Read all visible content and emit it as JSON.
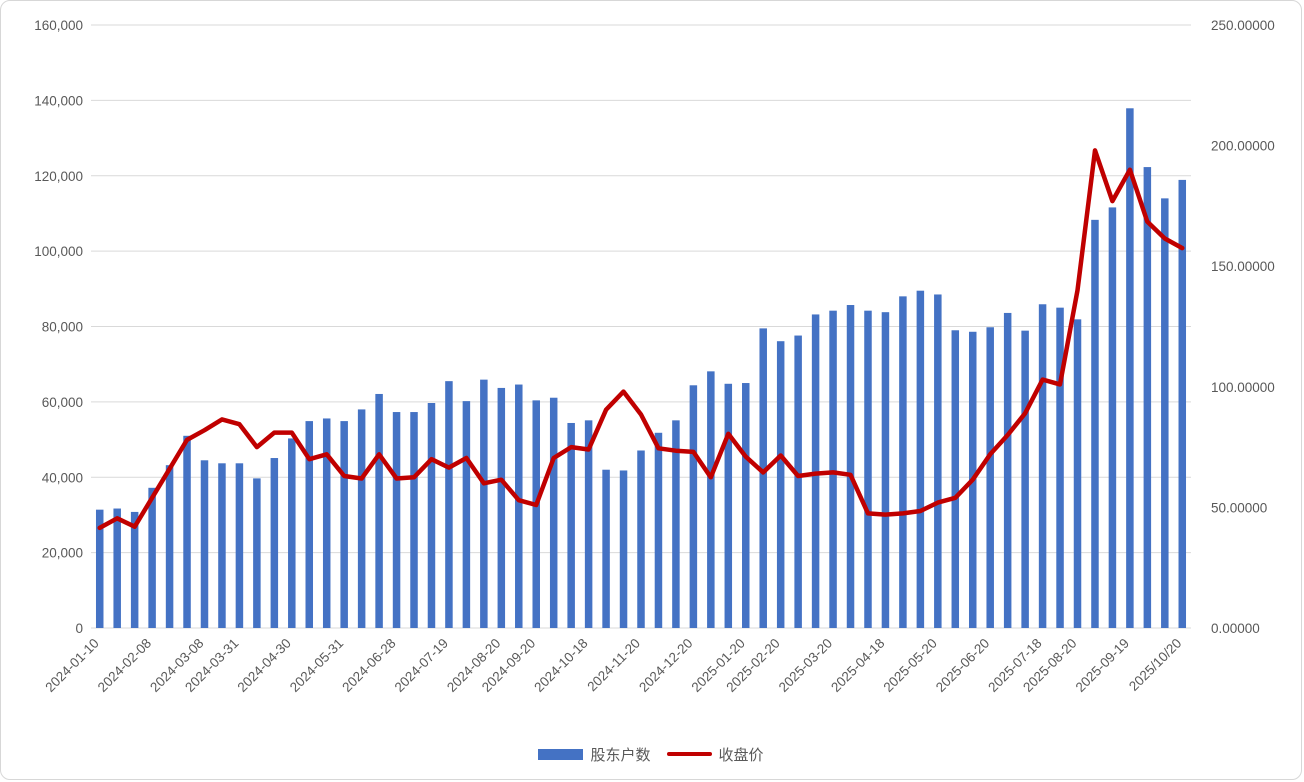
{
  "legend": {
    "bar_label": "股东户数",
    "line_label": "收盘价"
  },
  "colors": {
    "bar": "#4472C4",
    "line": "#C00000",
    "gridline": "#D9D9D9",
    "axis_text": "#595959",
    "background": "#FFFFFF",
    "frame_border": "#D7D7D7"
  },
  "chart_data": {
    "type": "bar",
    "subtype": "combo-bar-line-dual-axis",
    "title": "",
    "grid": true,
    "legend_position": "bottom",
    "x_tick_labels": [
      "2024-01-10",
      "2024-02-08",
      "2024-03-08",
      "2024-03-31",
      "2024-04-30",
      "2024-05-31",
      "2024-06-28",
      "2024-07-19",
      "2024-08-20",
      "2024-09-20",
      "2024-10-18",
      "2024-11-20",
      "2024-12-20",
      "2025-01-20",
      "2025-02-20",
      "2025-03-20",
      "2025-04-18",
      "2025-05-20",
      "2025-06-20",
      "2025-07-18",
      "2025-08-20",
      "2025-09-19",
      "2025/10/20"
    ],
    "x_tick_bar_indices": [
      0,
      3,
      6,
      8,
      11,
      14,
      17,
      20,
      23,
      25,
      28,
      31,
      34,
      37,
      39,
      42,
      45,
      48,
      51,
      54,
      56,
      59,
      62
    ],
    "left_axis": {
      "ticks": [
        "0",
        "20,000",
        "40,000",
        "60,000",
        "80,000",
        "100,000",
        "120,000",
        "140,000",
        "160,000"
      ],
      "min": 0,
      "max": 160000
    },
    "right_axis": {
      "ticks": [
        "0.00000",
        "50.00000",
        "100.00000",
        "150.00000",
        "200.00000",
        "250.00000"
      ],
      "min": 0,
      "max": 250
    },
    "series": [
      {
        "name": "股东户数",
        "type": "bar",
        "axis": "left",
        "color": "#4472C4",
        "values": [
          31400,
          31700,
          30800,
          37200,
          43200,
          51000,
          44500,
          43700,
          43700,
          39700,
          45100,
          50300,
          54900,
          55600,
          54900,
          58000,
          62100,
          57300,
          57300,
          59700,
          65500,
          60200,
          65900,
          63700,
          64600,
          60400,
          61100,
          54400,
          55100,
          42000,
          41800,
          47100,
          51800,
          55100,
          64400,
          68100,
          64800,
          65000,
          79500,
          76100,
          77600,
          83200,
          84200,
          85700,
          84200,
          83800,
          88000,
          89500,
          88500,
          79000,
          78600,
          79800,
          83600,
          78900,
          85900,
          85000,
          81900,
          108300,
          111600,
          137900,
          122300,
          114000,
          118900
        ]
      },
      {
        "name": "收盘价",
        "type": "line",
        "axis": "right",
        "color": "#C00000",
        "values": [
          41.5,
          45.5,
          42,
          54,
          66,
          78,
          82,
          86.5,
          84.5,
          75,
          81,
          81,
          70,
          72,
          63,
          62,
          72,
          62,
          62.5,
          70,
          66.5,
          70.5,
          60,
          61.5,
          53,
          51,
          70.5,
          75,
          74,
          90.5,
          98,
          88.5,
          74.5,
          73.5,
          73,
          62.5,
          80.5,
          71,
          64.5,
          71.5,
          63,
          64,
          64.5,
          63.5,
          47.5,
          47,
          47.5,
          48.5,
          52,
          54,
          61.5,
          72,
          80,
          89,
          103,
          101,
          140,
          198,
          177,
          190,
          168.5,
          161.5,
          157.5
        ]
      }
    ]
  }
}
